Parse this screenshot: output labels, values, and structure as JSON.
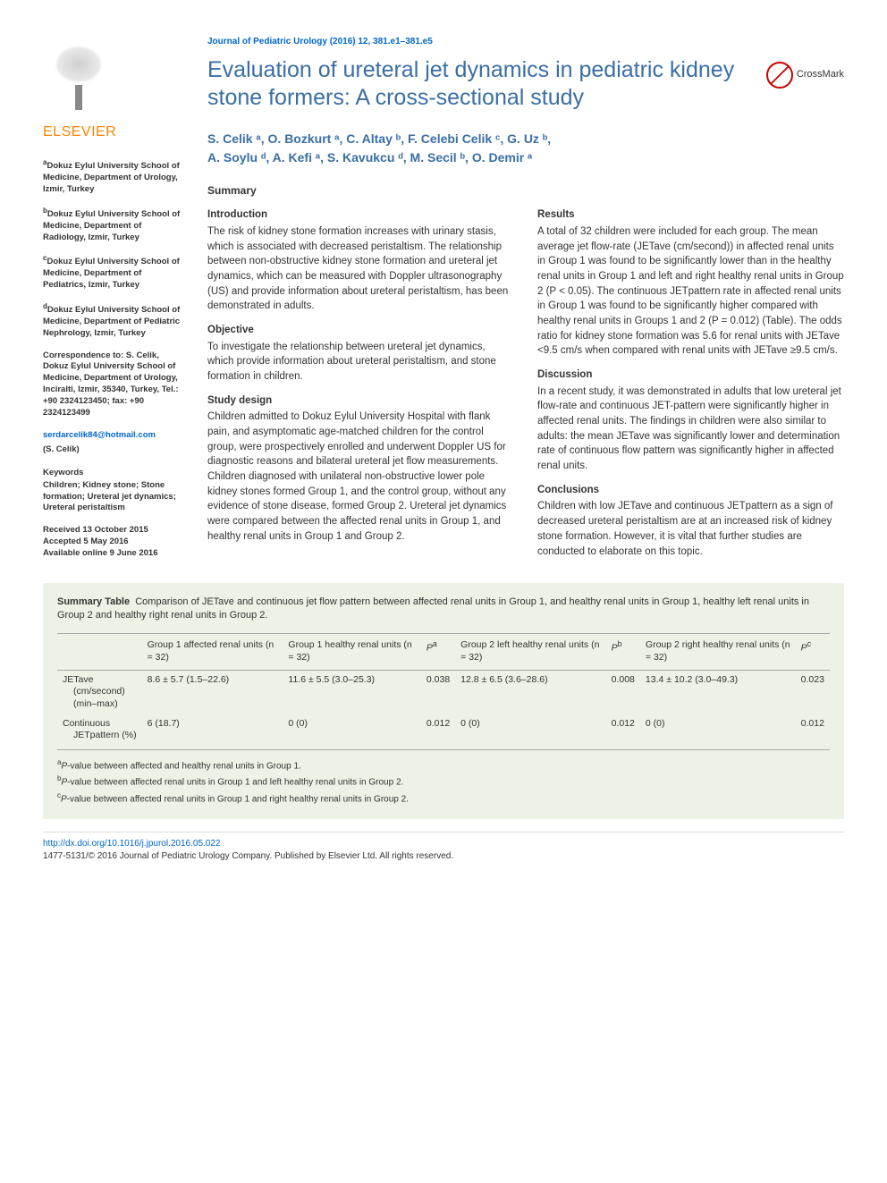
{
  "journal_ref": "Journal of Pediatric Urology (2016) 12, 381.e1–381.e5",
  "title": "Evaluation of ureteral jet dynamics in pediatric kidney stone formers: A cross-sectional study",
  "crossmark_label": "CrossMark",
  "publisher": "ELSEVIER",
  "authors_line1": "S. Celik ᵃ, O. Bozkurt ᵃ, C. Altay ᵇ, F. Celebi Celik ᶜ, G. Uz ᵇ,",
  "authors_line2": "A. Soylu ᵈ, A. Kefi ᵃ, S. Kavukcu ᵈ, M. Secil ᵇ, O. Demir ᵃ",
  "affiliations": [
    {
      "sup": "a",
      "text": "Dokuz Eylul University School of Medicine, Department of Urology, Izmir, Turkey"
    },
    {
      "sup": "b",
      "text": "Dokuz Eylul University School of Medicine, Department of Radiology, Izmir, Turkey"
    },
    {
      "sup": "c",
      "text": "Dokuz Eylul University School of Medicine, Department of Pediatrics, Izmir, Turkey"
    },
    {
      "sup": "d",
      "text": "Dokuz Eylul University School of Medicine, Department of Pediatric Nephrology, Izmir, Turkey"
    }
  ],
  "correspondence": "Correspondence to: S. Celik, Dokuz Eylul University School of Medicine, Department of Urology, Inciralti, Izmir, 35340, Turkey, Tel.: +90 2324123450; fax: +90 2324123499",
  "email": "serdarcelik84@hotmail.com",
  "email_name": "(S. Celik)",
  "keywords_head": "Keywords",
  "keywords": "Children; Kidney stone; Stone formation; Ureteral jet dynamics; Ureteral peristaltism",
  "dates": {
    "received": "Received 13 October 2015",
    "accepted": "Accepted 5 May 2016",
    "online": "Available online 9 June 2016"
  },
  "summary_label": "Summary",
  "sections_left": [
    {
      "head": "Introduction",
      "body": "The risk of kidney stone formation increases with urinary stasis, which is associated with decreased peristaltism. The relationship between non-obstructive kidney stone formation and ureteral jet dynamics, which can be measured with Doppler ultrasonography (US) and provide information about ureteral peristaltism, has been demonstrated in adults."
    },
    {
      "head": "Objective",
      "body": "To investigate the relationship between ureteral jet dynamics, which provide information about ureteral peristaltism, and stone formation in children."
    },
    {
      "head": "Study design",
      "body": "Children admitted to Dokuz Eylul University Hospital with flank pain, and asymptomatic age-matched children for the control group, were prospectively enrolled and underwent Doppler US for diagnostic reasons and bilateral ureteral jet flow measurements. Children diagnosed with unilateral non-obstructive lower pole kidney stones formed Group 1, and the control group, without any evidence of stone disease, formed Group 2. Ureteral jet dynamics were compared between the affected renal units in Group 1, and healthy renal units in Group 1 and Group 2."
    }
  ],
  "sections_right": [
    {
      "head": "Results",
      "body": "A total of 32 children were included for each group. The mean average jet flow-rate (JETave (cm/second)) in affected renal units in Group 1 was found to be significantly lower than in the healthy renal units in Group 1 and left and right healthy renal units in Group 2 (P < 0.05). The continuous JETpattern rate in affected renal units in Group 1 was found to be significantly higher compared with healthy renal units in Groups 1 and 2 (P = 0.012) (Table). The odds ratio for kidney stone formation was 5.6 for renal units with JETave <9.5 cm/s when compared with renal units with JETave ≥9.5 cm/s."
    },
    {
      "head": "Discussion",
      "body": "In a recent study, it was demonstrated in adults that low ureteral jet flow-rate and continuous JET-pattern were significantly higher in affected renal units. The findings in children were also similar to adults: the mean JETave was significantly lower and determination rate of continuous flow pattern was significantly higher in affected renal units."
    },
    {
      "head": "Conclusions",
      "body": "Children with low JETave and continuous JETpattern as a sign of decreased ureteral peristaltism are at an increased risk of kidney stone formation. However, it is vital that further studies are conducted to elaborate on this topic."
    }
  ],
  "table": {
    "caption_label": "Summary Table",
    "caption_text": "Comparison of JETave and continuous jet flow pattern between affected renal units in Group 1, and healthy renal units in Group 1, healthy left renal units in Group 2 and healthy right renal units in Group 2.",
    "columns": [
      "",
      "Group 1 affected renal units (n = 32)",
      "Group 1 healthy renal units (n = 32)",
      "Pᵃ",
      "Group 2 left healthy renal units (n = 32)",
      "Pᵇ",
      "Group 2 right healthy renal units (n = 32)",
      "Pᶜ"
    ],
    "rows": [
      {
        "label": "JETave (cm/second) (min–max)",
        "cells": [
          "8.6 ± 5.7 (1.5–22.6)",
          "11.6 ± 5.5 (3.0–25.3)",
          "0.038",
          "12.8 ± 6.5 (3.6–28.6)",
          "0.008",
          "13.4 ± 10.2 (3.0–49.3)",
          "0.023"
        ]
      },
      {
        "label": "Continuous JETpattern (%)",
        "cells": [
          "6 (18.7)",
          "0 (0)",
          "0.012",
          "0 (0)",
          "0.012",
          "0 (0)",
          "0.012"
        ]
      }
    ],
    "footnotes": [
      {
        "sup": "a",
        "text": "P-value between affected and healthy renal units in Group 1."
      },
      {
        "sup": "b",
        "text": "P-value between affected renal units in Group 1 and left healthy renal units in Group 2."
      },
      {
        "sup": "c",
        "text": "P-value between affected renal units in Group 1 and right healthy renal units in Group 2."
      }
    ],
    "background_color": "#ecf2e5",
    "border_color": "#aaaaaa",
    "font_size": 10.5
  },
  "footer": {
    "doi": "http://dx.doi.org/10.1016/j.jpurol.2016.05.022",
    "copyright": "1477-5131/© 2016 Journal of Pediatric Urology Company. Published by Elsevier Ltd. All rights reserved."
  },
  "colors": {
    "link": "#0066cc",
    "title": "#3a6ea5",
    "elsevier": "#ff8200",
    "sup_author": "#cc4444"
  }
}
